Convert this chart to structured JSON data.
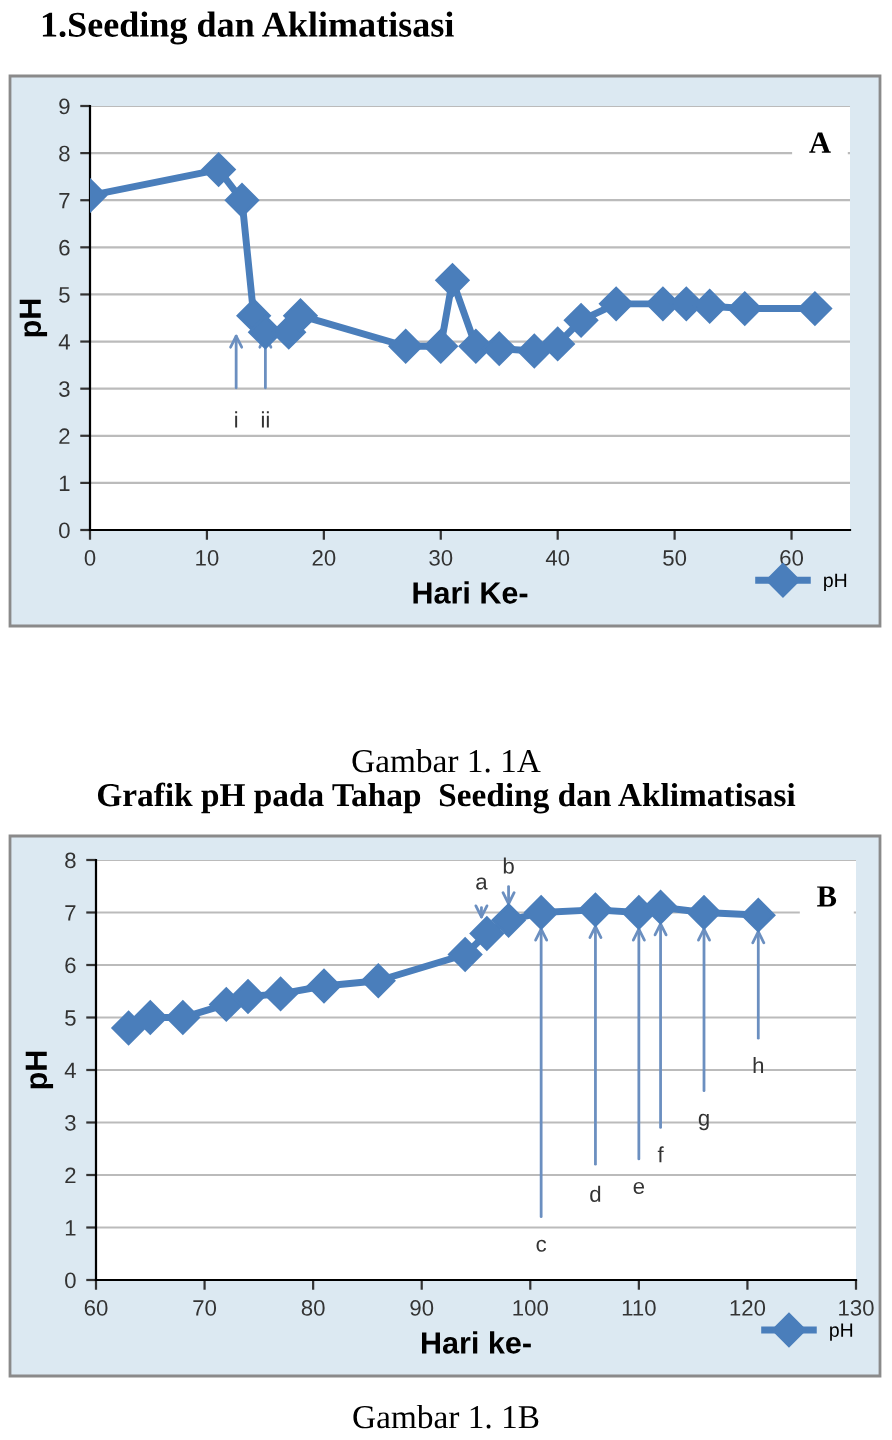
{
  "chart_data": [
    {
      "type": "line",
      "xlabel": "Hari Ke-",
      "ylabel": "pH",
      "xlim": [
        0,
        65
      ],
      "xticks": [
        0,
        10,
        20,
        30,
        40,
        50,
        60
      ],
      "ylim": [
        0,
        9
      ],
      "yticks": [
        0,
        1,
        2,
        3,
        4,
        5,
        6,
        7,
        8,
        9
      ],
      "grid": "y",
      "legend": "bottom right",
      "marker": "diamond",
      "line_style": "solid",
      "x": [
        0,
        11,
        13,
        14,
        15,
        17,
        18,
        27,
        30,
        31,
        33,
        35,
        38,
        40,
        42,
        45,
        49,
        51,
        53,
        56,
        62
      ],
      "series": [
        {
          "name": "pH",
          "color": "#4a7ebb",
          "values": [
            7.1,
            7.65,
            7.0,
            4.55,
            4.2,
            4.2,
            4.55,
            3.9,
            3.9,
            5.3,
            3.9,
            3.85,
            3.8,
            3.95,
            4.45,
            4.8,
            4.8,
            4.8,
            4.75,
            4.7,
            4.7
          ]
        }
      ],
      "annotations": [
        "1.Seeding dan Aklimatisasi",
        "A",
        "Gambar 1. 1A",
        "Grafik pH pada Tahap  Seeding dan Aklimatisasi",
        {
          "text": "i",
          "x": 12.5,
          "y": 4.3
        },
        {
          "text": "ii",
          "x": 15,
          "y": 4.3
        }
      ]
    },
    {
      "type": "line",
      "xlabel": "Hari ke-",
      "ylabel": "pH",
      "xlim": [
        60,
        130
      ],
      "xticks": [
        60,
        70,
        80,
        90,
        100,
        110,
        120,
        130
      ],
      "ylim": [
        0,
        8
      ],
      "yticks": [
        0,
        1,
        2,
        3,
        4,
        5,
        6,
        7,
        8
      ],
      "grid": "y",
      "legend": "bottom right",
      "marker": "diamond",
      "line_style": "solid",
      "x": [
        63,
        65,
        68,
        72,
        74,
        77,
        81,
        86,
        94,
        96,
        98,
        101,
        106,
        110,
        112,
        116,
        121
      ],
      "series": [
        {
          "name": "pH",
          "color": "#4a7ebb",
          "values": [
            4.8,
            5.0,
            5.0,
            5.25,
            5.4,
            5.45,
            5.6,
            5.7,
            6.2,
            6.6,
            6.85,
            7.0,
            7.05,
            7.0,
            7.1,
            7.0,
            6.95
          ]
        }
      ],
      "annotations": [
        "B",
        "Gambar 1. 1B",
        {
          "text": "a",
          "x": 95.5,
          "y": 6.75
        },
        {
          "text": "b",
          "x": 98,
          "y": 7.0
        },
        {
          "text": "c",
          "x": 101,
          "y": 6.85
        },
        {
          "text": "d",
          "x": 106,
          "y": 6.9
        },
        {
          "text": "e",
          "x": 110,
          "y": 6.85
        },
        {
          "text": "f",
          "x": 112,
          "y": 6.95
        },
        {
          "text": "g",
          "x": 116,
          "y": 6.85
        },
        {
          "text": "h",
          "x": 121,
          "y": 6.8
        }
      ]
    }
  ]
}
